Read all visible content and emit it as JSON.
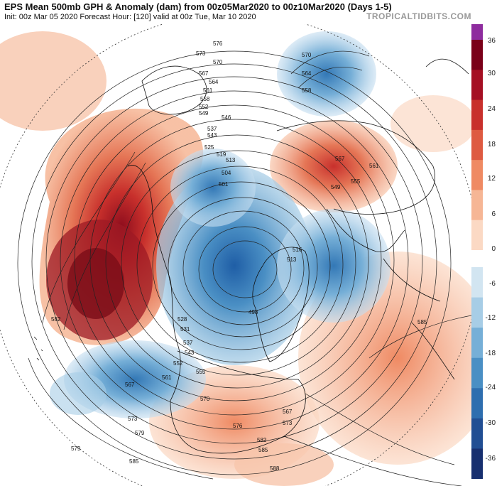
{
  "header": {
    "title": "EPS Mean 500mb GPH & Anomaly (dam) from 00z05Mar2020 to 00z10Mar2020 (Days 1-5)",
    "subtitle": "Init: 00z Mar 05 2020   Forecast Hour: [120]   valid at 00z Tue, Mar 10 2020",
    "brand": "TROPICALTIDBITS.COM"
  },
  "colorbar": {
    "ticks": [
      "36",
      "30",
      "24",
      "18",
      "12",
      "6",
      "0",
      "-6",
      "-12",
      "-18",
      "-24",
      "-30",
      "-36"
    ],
    "colors_positive": [
      "#7a0019",
      "#a50f23",
      "#c8302c",
      "#de5a41",
      "#ef8a63",
      "#f6b695",
      "#fbd9c4"
    ],
    "color_top": "#8e2c9e",
    "colors_negative": [
      "#d2e5f1",
      "#a7cde6",
      "#76afd7",
      "#4a8fc4",
      "#2e6eaf",
      "#214e93",
      "#172f6f"
    ]
  },
  "contours": {
    "labels": [
      "576",
      "570",
      "573",
      "567",
      "564",
      "561",
      "558",
      "552",
      "549",
      "546",
      "537",
      "543",
      "525",
      "519",
      "513",
      "504",
      "501",
      "498",
      "516",
      "513",
      "528",
      "531",
      "537",
      "543",
      "552",
      "555",
      "561",
      "567",
      "570",
      "573",
      "576",
      "579",
      "582",
      "585",
      "588",
      "582",
      "585",
      "570",
      "564",
      "558",
      "567",
      "561",
      "549",
      "555",
      "573",
      "567",
      "579",
      "585"
    ]
  }
}
